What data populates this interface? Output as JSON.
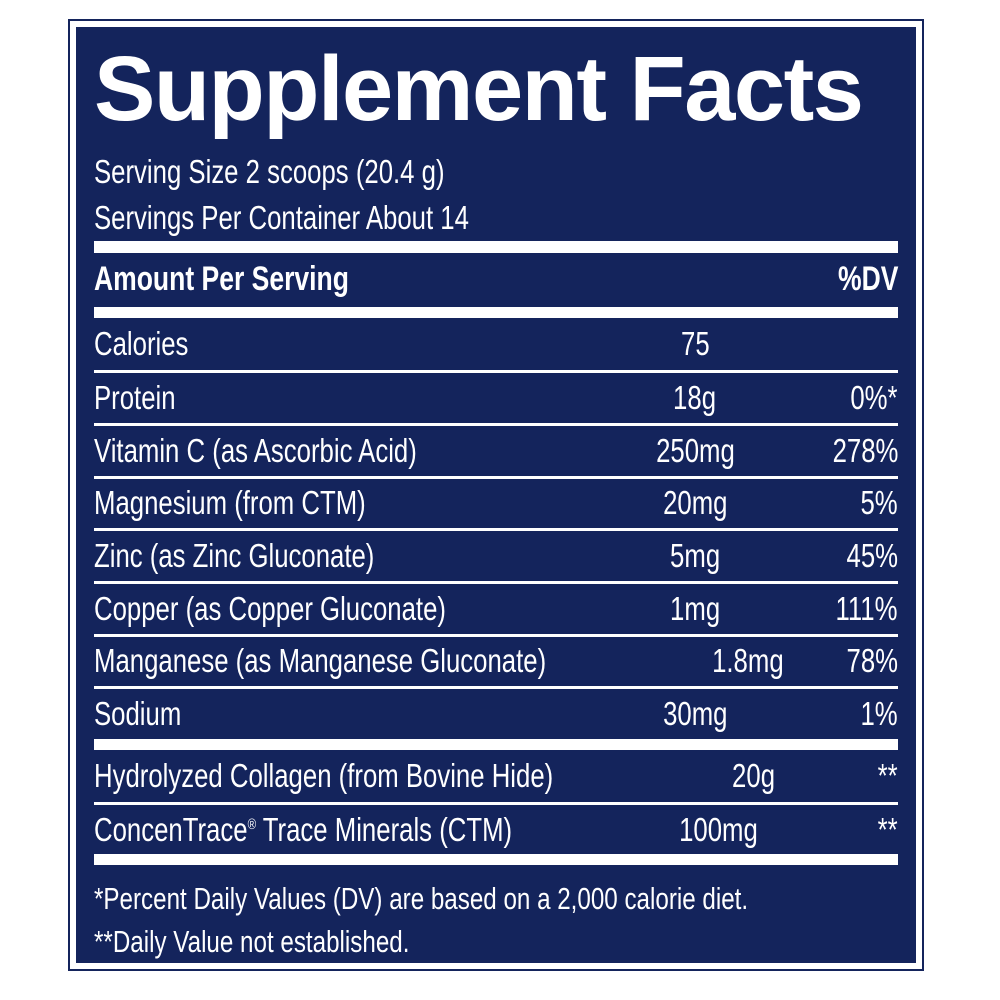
{
  "panel": {
    "title": "Supplement Facts",
    "serving_size": "Serving Size 2 scoops (20.4 g)",
    "servings_per_container": "Servings Per Container About 14",
    "header": {
      "amount_label": "Amount Per Serving",
      "dv_label": "%DV"
    },
    "rows": [
      {
        "name": "Calories",
        "amount": "75",
        "dv": ""
      },
      {
        "name": "Protein",
        "amount": "18g",
        "dv": "0%*"
      },
      {
        "name": "Vitamin C (as Ascorbic Acid)",
        "amount": "250mg",
        "dv": "278%"
      },
      {
        "name": "Magnesium (from CTM)",
        "amount": "20mg",
        "dv": "5%"
      },
      {
        "name": "Zinc (as Zinc Gluconate)",
        "amount": "5mg",
        "dv": "45%"
      },
      {
        "name": "Copper (as Copper Gluconate)",
        "amount": "1mg",
        "dv": "111%"
      },
      {
        "name": "Manganese (as Manganese Gluconate)",
        "amount": "1.8mg",
        "dv": "78%"
      },
      {
        "name": "Sodium",
        "amount": "30mg",
        "dv": "1%"
      }
    ],
    "secondary_rows": [
      {
        "name": "Hydrolyzed Collagen (from Bovine Hide)",
        "amount": "20g",
        "dv": "**"
      },
      {
        "name": "ConcenTrace® Trace Minerals (CTM)",
        "amount": "100mg",
        "dv": "**"
      }
    ],
    "footnotes": [
      "*Percent Daily Values (DV) are based on a 2,000 calorie diet.",
      "**Daily Value not established."
    ],
    "colors": {
      "background": "#14245c",
      "text": "#ffffff",
      "rule": "#ffffff"
    }
  }
}
